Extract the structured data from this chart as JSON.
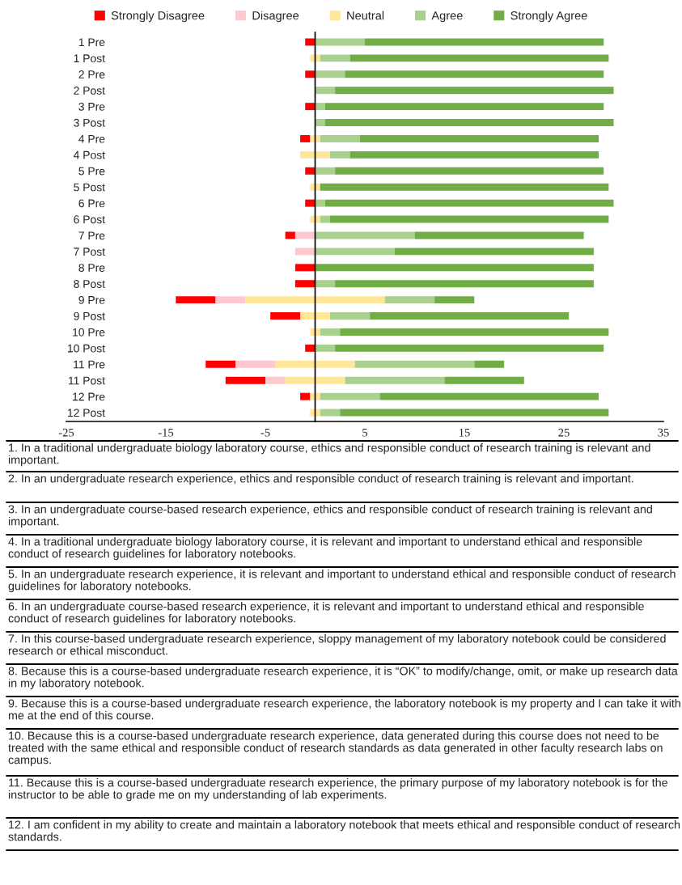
{
  "chart_data": {
    "type": "bar",
    "orientation": "horizontal",
    "categories": [
      "1 Pre",
      "1 Post",
      "2 Pre",
      "2 Post",
      "3 Pre",
      "3 Post",
      "4 Pre",
      "4 Post",
      "5 Pre",
      "5 Post",
      "6 Pre",
      "6 Post",
      "7 Pre",
      "7 Post",
      "8 Pre",
      "8 Post",
      "9 Pre",
      "9 Post",
      "10 Pre",
      "10 Post",
      "11 Pre",
      "11 Post",
      "12 Pre",
      "12 Post"
    ],
    "series": [
      {
        "name": "Strongly Disagree",
        "color": "#ff0000",
        "values": [
          1,
          null,
          1,
          null,
          1,
          null,
          1,
          null,
          1,
          null,
          1,
          null,
          1,
          null,
          2,
          2,
          4,
          3,
          null,
          1,
          3,
          4,
          1,
          null
        ],
        "base": [
          -1,
          null,
          -1,
          null,
          -1,
          null,
          -1.5,
          null,
          -1,
          null,
          -1,
          null,
          -3,
          null,
          -2,
          -2,
          -14,
          -4.5,
          null,
          -1,
          -11,
          -9,
          -1.5,
          null
        ]
      },
      {
        "name": "Disagree",
        "color": "#ffc7ce",
        "values": [
          null,
          null,
          null,
          null,
          null,
          null,
          null,
          null,
          null,
          null,
          null,
          null,
          2,
          2,
          null,
          null,
          3,
          null,
          null,
          null,
          4,
          2,
          null,
          null
        ],
        "base": [
          null,
          null,
          null,
          null,
          null,
          null,
          null,
          null,
          null,
          null,
          null,
          null,
          -2,
          -2,
          null,
          null,
          -10,
          null,
          null,
          null,
          -8,
          -5,
          null,
          null
        ]
      },
      {
        "name": "Neutral",
        "color": "#ffe699",
        "values": [
          null,
          1,
          null,
          null,
          null,
          null,
          1,
          3,
          null,
          1,
          null,
          1,
          null,
          null,
          null,
          null,
          14,
          3,
          1,
          null,
          8,
          6,
          1,
          1
        ],
        "base": [
          null,
          -0.5,
          null,
          null,
          null,
          null,
          -0.5,
          -1.5,
          null,
          -0.5,
          null,
          -0.5,
          null,
          null,
          null,
          null,
          -7,
          -1.5,
          -0.5,
          null,
          -4,
          -3,
          -0.5,
          -0.5
        ]
      },
      {
        "name": "Agree",
        "color": "#a9d08e",
        "values": [
          5,
          3,
          3,
          2,
          1,
          1,
          4,
          2,
          2,
          null,
          1,
          1,
          10,
          8,
          null,
          2,
          5,
          4,
          2,
          2,
          12,
          10,
          6,
          2
        ],
        "base": [
          0,
          0.5,
          0,
          0,
          0,
          0,
          0.5,
          1.5,
          0,
          null,
          0,
          0.5,
          0,
          0,
          null,
          0,
          7,
          1.5,
          0.5,
          0,
          4,
          3,
          0.5,
          0.5
        ]
      },
      {
        "name": "Strongly Agree",
        "color": "#70ad47",
        "values": [
          24,
          26,
          26,
          28,
          28,
          29,
          24,
          25,
          27,
          29,
          29,
          28,
          17,
          20,
          28,
          26,
          4,
          20,
          27,
          27,
          3,
          8,
          22,
          27
        ],
        "base": [
          5,
          3.5,
          3,
          2,
          1,
          1,
          4.5,
          3.5,
          2,
          0.5,
          1,
          1.5,
          10,
          8,
          0,
          2,
          12,
          5.5,
          2.5,
          2,
          16,
          13,
          6.5,
          2.5
        ]
      }
    ],
    "xlim": [
      -25,
      35
    ],
    "xticks": [
      -25,
      -15,
      -5,
      5,
      15,
      25,
      35
    ],
    "grid": false,
    "legend": "top",
    "annotations": [
      "1. In a traditional undergraduate biology laboratory course, ethics and responsible conduct of research training is relevant and important.",
      "2. In an undergraduate research experience, ethics and responsible conduct of research training is relevant and important.",
      "3. In an undergraduate course-based research experience, ethics and responsible conduct of research training is relevant and important.",
      "4. In a traditional undergraduate biology laboratory course, it is relevant and important to understand ethical and responsible conduct of research guidelines for laboratory notebooks.",
      "5. In an undergraduate research experience, it is relevant and important to understand ethical and responsible conduct of research guidelines for laboratory notebooks.",
      "6. In an undergraduate course-based research experience, it is relevant and important to understand ethical and responsible conduct of research guidelines for laboratory notebooks.",
      "7. In this course-based undergraduate research experience, sloppy management of my laboratory notebook could be considered research or ethical misconduct.",
      "8. Because this is a course-based undergraduate research experience, it is “OK” to modify/change, omit, or make up research data in my laboratory notebook.",
      "9. Because this is a course-based undergraduate research experience, the laboratory notebook is my property and I can take it with me at the end of this course.",
      "10. Because this is a course-based undergraduate research experience, data generated during this course does not need to be treated with the same ethical and responsible conduct of research standards as data generated in other faculty research labs on campus.",
      "11. Because this is a course-based undergraduate research experience, the primary purpose of my laboratory notebook is for the instructor to be able to grade me on my understanding of lab experiments.",
      "12. I am confident in my ability to create and maintain a laboratory notebook that meets ethical and responsible conduct of research standards."
    ]
  }
}
